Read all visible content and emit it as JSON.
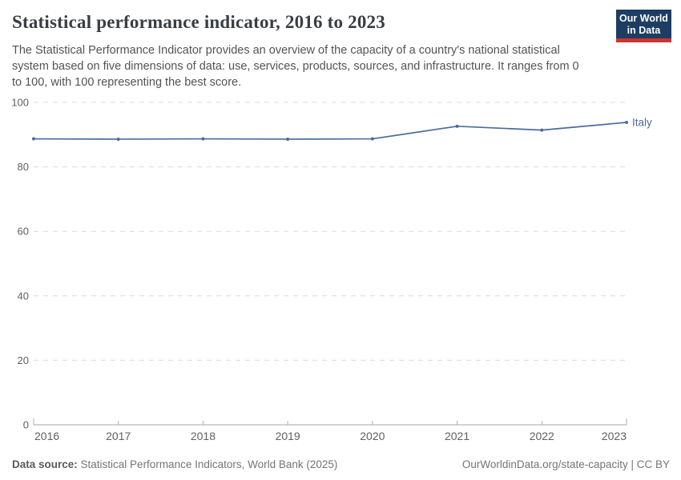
{
  "header": {
    "title": "Statistical performance indicator, 2016 to 2023",
    "subtitle_lines": [
      "The Statistical Performance Indicator provides an overview of the capacity of a country's national statistical",
      "system based on five dimensions of data: use, services, products, sources, and infrastructure. It ranges from 0",
      "to 100, with 100 representing the best score."
    ],
    "logo": {
      "line1": "Our World",
      "line2": "in Data",
      "background": "#1d3d63",
      "stripe": "#cf342e"
    }
  },
  "chart_data": {
    "type": "line",
    "title": "Statistical performance indicator, 2016 to 2023",
    "x": [
      2016,
      2017,
      2018,
      2019,
      2020,
      2021,
      2022,
      2023
    ],
    "series": [
      {
        "name": "Italy",
        "values": [
          88.7,
          88.6,
          88.7,
          88.6,
          88.7,
          92.6,
          91.4,
          93.8
        ],
        "color": "#4c6a9c"
      }
    ],
    "xlabel": "",
    "ylabel": "",
    "ylim": [
      0,
      100
    ],
    "yticks": [
      0,
      20,
      40,
      60,
      80,
      100
    ],
    "grid": "horizontal-dashed",
    "legend": "end-of-line-label"
  },
  "colors": {
    "line": "#4c6a9c",
    "grid": "#dcdcdc",
    "axis": "#a5a5a5",
    "tick": "#adadad",
    "axis_text": "#606060"
  },
  "footer": {
    "source_label": "Data source:",
    "source_text": " Statistical Performance Indicators, World Bank (2025)",
    "right_text": "OurWorldinData.org/state-capacity | CC BY"
  }
}
